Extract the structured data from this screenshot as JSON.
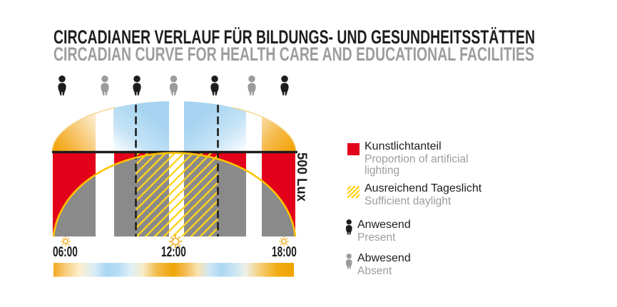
{
  "title": {
    "de": "CIRCADIANER VERLAUF FÜR BILDUNGS- UND GESUNDHEITSSTÄTTEN",
    "en": "CIRCADIAN CURVE FOR HEALTH CARE AND EDUCATIONAL FACILITIES"
  },
  "presence": {
    "sequence": [
      "present",
      "absent",
      "present",
      "absent",
      "present",
      "absent",
      "present"
    ]
  },
  "chart_data": {
    "type": "area",
    "title": "Circadian daylight curve",
    "x_ticks": [
      "06:00",
      "12:00",
      "18:00"
    ],
    "y_threshold_label": "500 Lux",
    "daylight_curve": {
      "start": "06:00",
      "peak": "12:00",
      "end": "18:00",
      "exceeds_500_lux_between": [
        "10:00",
        "14:00"
      ]
    },
    "bands": [
      {
        "time": "06:00-08:10",
        "state": "present",
        "fill": "red-artificial-light"
      },
      {
        "time": "08:10-09:00",
        "state": "absent",
        "fill": "white"
      },
      {
        "time": "09:00-10:00",
        "state": "present",
        "fill": "gray"
      },
      {
        "time": "10:00-11:45",
        "state": "present",
        "fill": "gray-hatched-daylight"
      },
      {
        "time": "11:45-12:30",
        "state": "absent",
        "fill": "white-hatched-daylight"
      },
      {
        "time": "12:30-14:00",
        "state": "present",
        "fill": "gray-hatched-daylight"
      },
      {
        "time": "14:00-15:30",
        "state": "present",
        "fill": "gray"
      },
      {
        "time": "15:30-16:20",
        "state": "absent",
        "fill": "white"
      },
      {
        "time": "16:20-18:00",
        "state": "present",
        "fill": "red-artificial-light"
      }
    ],
    "legend_position": "right",
    "grid": false
  },
  "legend": {
    "items": [
      {
        "swatch": "red-square",
        "label": "Kunstlichtanteil",
        "sublabel": "Proportion of artificial lighting"
      },
      {
        "swatch": "yellow-hatch-square",
        "label": "Ausreichend Tageslicht",
        "sublabel": "Sufficient daylight"
      },
      {
        "swatch": "person-black",
        "label": "Anwesend",
        "sublabel": "Present"
      },
      {
        "swatch": "person-gray",
        "label": "Abwesend",
        "sublabel": "Absent"
      }
    ]
  },
  "colors": {
    "artificial_red": "#e2001a",
    "dome_gray": "#8a8a8a",
    "sky_blue": "#a5d3f0",
    "sun_orange": "#f2a100",
    "curve_yellow": "#ffc300",
    "hatch_yellow": "#ffd21e",
    "text_black": "#1d1d1b",
    "text_gray": "#9d9d9c",
    "present": "#1d1d1b",
    "absent": "#9b9b9b"
  }
}
